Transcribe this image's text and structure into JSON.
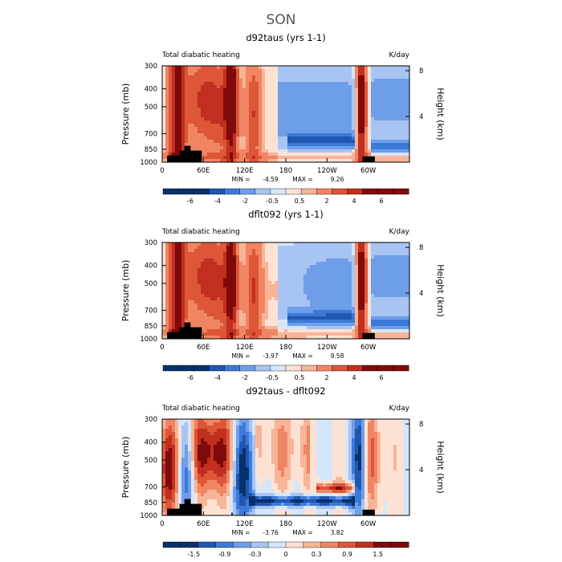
{
  "season_title": "SON",
  "colors": {
    "negative_scale": [
      "#08306b",
      "#1f57b0",
      "#3c7ad8",
      "#6f9ee9",
      "#a7c4f2",
      "#d6e6fa"
    ],
    "positive_scale": [
      "#fde2d4",
      "#f8b497",
      "#f08563",
      "#dc5637",
      "#c02f1f",
      "#7f0a0a"
    ],
    "topography": "#000000"
  },
  "chart_data": [
    {
      "type": "heatmap",
      "title": "d92taus (yrs 1-1)",
      "left_label": "Total diabatic heating",
      "units": "K/day",
      "xlabel": "",
      "ylabel": "Pressure (mb)",
      "right_ylabel": "Height (km)",
      "x_ticks": [
        "0",
        "60E",
        "120E",
        "180",
        "120W",
        "60W"
      ],
      "y_ticks": [
        "300",
        "400",
        "500",
        "700",
        "850",
        "1000"
      ],
      "right_ticks": [
        "8",
        "4"
      ],
      "stats": {
        "min_label": "MIN =",
        "min": "-4.59",
        "max_label": "MAX =",
        "max": "9.26"
      },
      "colorbar_ticks": [
        "-6",
        "-4",
        "-2",
        "-0.5",
        "0.5",
        "2",
        "4",
        "6"
      ],
      "levels": [
        -6,
        -5,
        -4,
        -3,
        -2,
        -1,
        -0.5,
        0,
        0.5,
        1,
        2,
        3,
        4,
        5,
        6
      ]
    },
    {
      "type": "heatmap",
      "title": "dflt092 (yrs 1-1)",
      "left_label": "Total diabatic heating",
      "units": "K/day",
      "xlabel": "",
      "ylabel": "Pressure (mb)",
      "right_ylabel": "Height (km)",
      "x_ticks": [
        "0",
        "60E",
        "120E",
        "180",
        "120W",
        "60W"
      ],
      "y_ticks": [
        "300",
        "400",
        "500",
        "700",
        "850",
        "1000"
      ],
      "right_ticks": [
        "8",
        "4"
      ],
      "stats": {
        "min_label": "MIN =",
        "min": "-3.97",
        "max_label": "MAX =",
        "max": "9.58"
      },
      "colorbar_ticks": [
        "-6",
        "-4",
        "-2",
        "-0.5",
        "0.5",
        "2",
        "4",
        "6"
      ],
      "levels": [
        -6,
        -5,
        -4,
        -3,
        -2,
        -1,
        -0.5,
        0,
        0.5,
        1,
        2,
        3,
        4,
        5,
        6
      ]
    },
    {
      "type": "heatmap",
      "title": "d92taus - dflt092",
      "left_label": "Total diabatic heating",
      "units": "K/day",
      "xlabel": "",
      "ylabel": "Pressure (mb)",
      "right_ylabel": "Height (km)",
      "x_ticks": [
        "0",
        "60E",
        "120E",
        "180",
        "120W",
        "60W"
      ],
      "y_ticks": [
        "300",
        "400",
        "500",
        "700",
        "850",
        "1000"
      ],
      "right_ticks": [
        "8",
        "4"
      ],
      "stats": {
        "min_label": "MIN =",
        "min": "-3.76",
        "max_label": "MAX =",
        "max": "3.82"
      },
      "colorbar_ticks": [
        "-1.5",
        "-0.9",
        "-0.3",
        "0",
        "0.3",
        "0.9",
        "1.5"
      ],
      "levels": [
        -1.8,
        -1.5,
        -1.2,
        -0.9,
        -0.6,
        -0.3,
        0,
        0.3,
        0.6,
        0.9,
        1.2,
        1.5,
        1.8
      ]
    }
  ]
}
